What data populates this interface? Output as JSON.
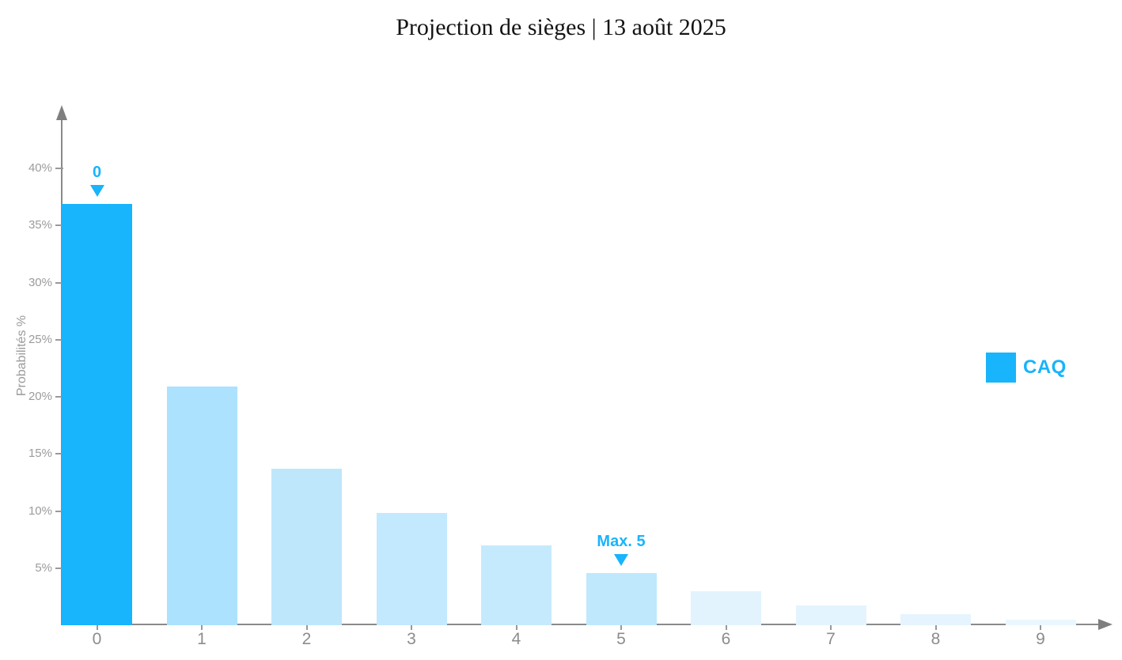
{
  "header": {
    "title": "Projection de sièges | 13 août 2025"
  },
  "colors": {
    "accent": "#18B4FC",
    "axis": "#8a8a8a",
    "tick_label": "#9b9b9b",
    "x_tick_label": "#8c8c8c",
    "title": "#141414"
  },
  "legend": {
    "entries": [
      {
        "label": "CAQ",
        "color": "#18B4FC"
      }
    ]
  },
  "chart_data": {
    "type": "bar",
    "title": "Projection de sièges | 13 août 2025",
    "xlabel": "",
    "ylabel": "Probabilités %",
    "categories": [
      "0",
      "1",
      "2",
      "3",
      "4",
      "5",
      "6",
      "7",
      "8",
      "9"
    ],
    "series": [
      {
        "name": "CAQ",
        "values": [
          36.9,
          20.9,
          13.7,
          9.8,
          7.0,
          4.6,
          3.0,
          1.7,
          1.0,
          0.5
        ]
      }
    ],
    "bar_colors": [
      "#18B4FC",
      "#ACE2FD",
      "#BEE7FC",
      "#C2E9FD",
      "#C6EAFD",
      "#BFE8FD",
      "#E2F3FD",
      "#E4F4FE",
      "#E5F4FE",
      "#EAF7FE"
    ],
    "ylim": [
      0,
      44
    ],
    "yticks": [
      5,
      10,
      15,
      20,
      25,
      30,
      35,
      40
    ],
    "ytick_labels": [
      "5%",
      "10%",
      "15%",
      "20%",
      "25%",
      "30%",
      "35%",
      "40%"
    ],
    "grid": false,
    "legend_position": "right",
    "annotations": [
      {
        "category": "0",
        "text": "0"
      },
      {
        "category": "5",
        "text": "Max. 5"
      }
    ]
  }
}
